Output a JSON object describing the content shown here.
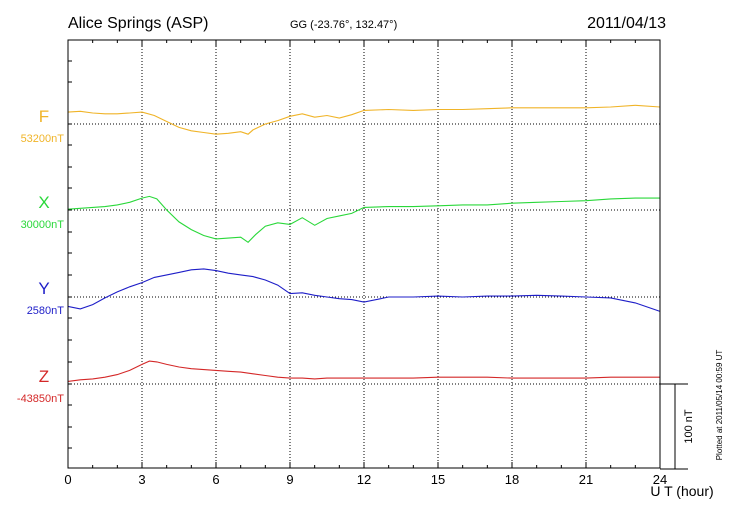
{
  "header": {
    "station": "Alice Springs (ASP)",
    "coords": "GG (-23.76°, 132.47°)",
    "date": "2011/04/13"
  },
  "side_note": "Plotted at 2011/05/14 00:59 UT",
  "chart_data": {
    "type": "line",
    "xlabel": "U T (hour)",
    "xlim": [
      0,
      24
    ],
    "xticks": [
      0,
      3,
      6,
      9,
      12,
      15,
      18,
      21,
      24
    ],
    "xtick_labels": [
      "0",
      "3",
      "6",
      "9",
      "12",
      "15",
      "18",
      "21",
      "24"
    ],
    "scale_bar_label": "100 nT",
    "scale_bar_nT": 100,
    "grid": true,
    "series": [
      {
        "name": "F",
        "baseline_label": "53200nT",
        "baseline_nT": 53200,
        "color": "#f0b428",
        "x": [
          0,
          0.5,
          1,
          1.5,
          2,
          2.5,
          3,
          3.5,
          4,
          4.5,
          5,
          5.5,
          6,
          6.5,
          7,
          7.3,
          7.5,
          8,
          8.5,
          9,
          9.5,
          10,
          10.5,
          11,
          11.5,
          12,
          13,
          14,
          15,
          16,
          17,
          18,
          19,
          20,
          21,
          22,
          23,
          24
        ],
        "values": [
          53214,
          53215,
          53213,
          53212,
          53212,
          53213,
          53214,
          53210,
          53203,
          53196,
          53192,
          53190,
          53188,
          53189,
          53191,
          53188,
          53193,
          53200,
          53204,
          53209,
          53212,
          53208,
          53210,
          53207,
          53211,
          53216,
          53217,
          53216,
          53217,
          53217,
          53218,
          53219,
          53219,
          53219,
          53219,
          53220,
          53222,
          53220
        ]
      },
      {
        "name": "X",
        "baseline_label": "30000nT",
        "baseline_nT": 30000,
        "color": "#2ad83a",
        "x": [
          0,
          0.5,
          1,
          1.5,
          2,
          2.5,
          3,
          3.3,
          3.6,
          4,
          4.5,
          5,
          5.5,
          6,
          6.5,
          7,
          7.3,
          7.6,
          8,
          8.5,
          9,
          9.5,
          10,
          10.5,
          11,
          11.5,
          12,
          13,
          14,
          15,
          16,
          17,
          18,
          19,
          20,
          21,
          22,
          23,
          24
        ],
        "values": [
          30001,
          30002,
          30003,
          30004,
          30006,
          30009,
          30014,
          30016,
          30013,
          30000,
          29986,
          29977,
          29970,
          29966,
          29967,
          29968,
          29962,
          29971,
          29981,
          29985,
          29983,
          29991,
          29982,
          29990,
          29993,
          29996,
          30003,
          30004,
          30004,
          30005,
          30006,
          30006,
          30008,
          30009,
          30010,
          30011,
          30013,
          30014,
          30014
        ]
      },
      {
        "name": "Y",
        "baseline_label": "2580nT",
        "baseline_nT": 2580,
        "color": "#1e1ec8",
        "x": [
          0,
          0.5,
          1,
          1.5,
          2,
          2.5,
          3,
          3.5,
          4,
          4.5,
          5,
          5.5,
          6,
          6.5,
          7,
          7.5,
          8,
          8.5,
          9,
          9.5,
          10,
          10.5,
          11,
          11.5,
          12,
          13,
          14,
          15,
          16,
          17,
          18,
          19,
          20,
          21,
          22,
          23,
          24
        ],
        "values": [
          2569,
          2566,
          2571,
          2579,
          2586,
          2592,
          2597,
          2603,
          2606,
          2609,
          2612,
          2613,
          2611,
          2608,
          2606,
          2604,
          2600,
          2594,
          2584,
          2585,
          2582,
          2580,
          2578,
          2577,
          2574,
          2580,
          2580,
          2581,
          2580,
          2581,
          2581,
          2582,
          2581,
          2580,
          2579,
          2573,
          2563
        ]
      },
      {
        "name": "Z",
        "baseline_label": "-43850nT",
        "baseline_nT": -43850,
        "color": "#d42828",
        "x": [
          0,
          0.5,
          1,
          1.5,
          2,
          2.5,
          3,
          3.3,
          3.6,
          4,
          4.5,
          5,
          5.5,
          6,
          6.5,
          7,
          7.5,
          8,
          8.5,
          9,
          9.5,
          10,
          10.5,
          11,
          12,
          13,
          14,
          15,
          16,
          17,
          18,
          19,
          20,
          21,
          22,
          23,
          24
        ],
        "values": [
          -43847,
          -43845,
          -43844,
          -43842,
          -43839,
          -43834,
          -43827,
          -43823,
          -43824,
          -43827,
          -43830,
          -43832,
          -43833,
          -43834,
          -43835,
          -43836,
          -43838,
          -43840,
          -43842,
          -43843,
          -43843,
          -43844,
          -43843,
          -43843,
          -43843,
          -43843,
          -43843,
          -43842,
          -43842,
          -43842,
          -43843,
          -43843,
          -43843,
          -43843,
          -43842,
          -43842,
          -43842
        ]
      }
    ]
  }
}
